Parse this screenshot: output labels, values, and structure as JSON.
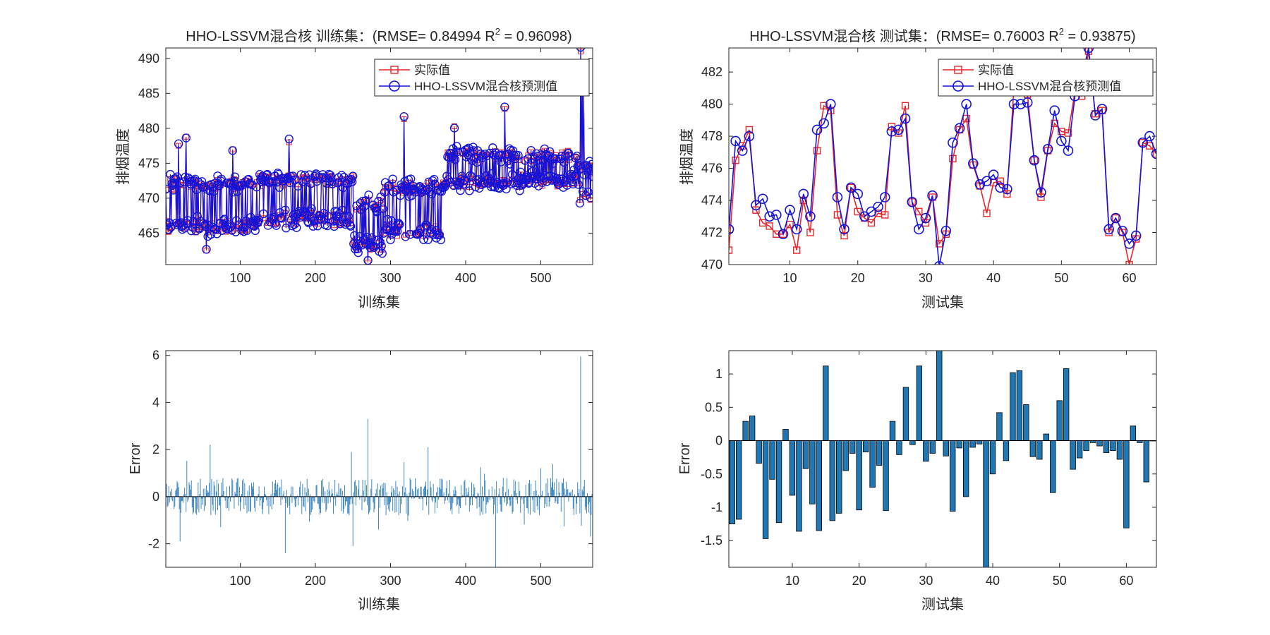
{
  "colors": {
    "actual": "#e8262a",
    "predicted": "#1414d9",
    "bar_fill": "#1f77b4",
    "error_line": "#2b7bb9",
    "axis": "#262626",
    "zero_line": "#000000"
  },
  "chart_data": [
    {
      "id": "train_pred",
      "type": "line",
      "title": "HHO-LSSVM混合核 训练集：(RMSE= 0.84994 R",
      "title_sup": "2",
      "title_tail": " = 0.96098)",
      "xlabel": "训练集",
      "ylabel": "排烟温度",
      "xlim": [
        1,
        569
      ],
      "ylim": [
        460.5,
        491.5
      ],
      "xticks": [
        100,
        200,
        300,
        400,
        500
      ],
      "yticks": [
        465,
        470,
        475,
        480,
        485,
        490
      ],
      "legend": {
        "position": "top-right",
        "entries": [
          "实际值",
          "HHO-LSSVM混合核预测值"
        ]
      },
      "n_points": 569,
      "profile": {
        "segments": [
          {
            "x": [
              1,
              120
            ],
            "low": 466.0,
            "high": 472.0
          },
          {
            "x": [
              120,
              250
            ],
            "low": 467.0,
            "high": 472.5
          },
          {
            "x": [
              250,
              290
            ],
            "low": 463.5,
            "high": 469.0
          },
          {
            "x": [
              290,
              370
            ],
            "low": 465.5,
            "high": 471.5
          },
          {
            "x": [
              370,
              550
            ],
            "low": 472.5,
            "high": 476.0
          },
          {
            "x": [
              550,
              569
            ],
            "low": 470.0,
            "high": 474.0
          }
        ],
        "spikes": [
          {
            "x": 28,
            "value": 478.8
          },
          {
            "x": 18,
            "value": 477.5
          },
          {
            "x": 90,
            "value": 477.0
          },
          {
            "x": 165,
            "value": 478.0
          },
          {
            "x": 318,
            "value": 481.3
          },
          {
            "x": 385,
            "value": 480.3
          },
          {
            "x": 452,
            "value": 482.8
          },
          {
            "x": 553,
            "value": 491.0
          },
          {
            "x": 555,
            "value": 487.5
          },
          {
            "x": 557,
            "value": 485.0
          },
          {
            "x": 270,
            "value": 460.8
          },
          {
            "x": 55,
            "value": 462.5
          }
        ]
      },
      "series": [
        {
          "name": "实际值",
          "marker": "square"
        },
        {
          "name": "HHO-LSSVM混合核预测值",
          "marker": "circle"
        }
      ]
    },
    {
      "id": "test_pred",
      "type": "line",
      "title": "HHO-LSSVM混合核 测试集：(RMSE= 0.76003 R",
      "title_sup": "2",
      "title_tail": " = 0.93875)",
      "xlabel": "测试集",
      "ylabel": "排烟温度",
      "xlim": [
        1,
        64
      ],
      "ylim": [
        470,
        483.5
      ],
      "xticks": [
        10,
        20,
        30,
        40,
        50,
        60
      ],
      "yticks": [
        470,
        472,
        474,
        476,
        478,
        480,
        482
      ],
      "legend": {
        "position": "top-right",
        "entries": [
          "实际值",
          "HHO-LSSVM混合核预测值"
        ]
      },
      "x": [
        1,
        2,
        3,
        4,
        5,
        6,
        7,
        8,
        9,
        10,
        11,
        12,
        13,
        14,
        15,
        16,
        17,
        18,
        19,
        20,
        21,
        22,
        23,
        24,
        25,
        26,
        27,
        28,
        29,
        30,
        31,
        32,
        33,
        34,
        35,
        36,
        37,
        38,
        39,
        40,
        41,
        42,
        43,
        44,
        45,
        46,
        47,
        48,
        49,
        50,
        51,
        52,
        53,
        54,
        55,
        56,
        57,
        58,
        59,
        60,
        61,
        62,
        63,
        64
      ],
      "series": [
        {
          "name": "实际值",
          "marker": "square",
          "values": [
            470.9,
            476.5,
            477.4,
            478.4,
            473.4,
            472.6,
            472.4,
            471.9,
            471.9,
            472.5,
            470.9,
            474.0,
            472.0,
            477.1,
            479.9,
            479.6,
            473.1,
            471.8,
            474.8,
            473.3,
            472.9,
            472.6,
            473.2,
            473.1,
            478.6,
            478.2,
            479.9,
            473.9,
            473.3,
            472.6,
            474.2,
            471.3,
            471.9,
            476.6,
            478.4,
            479.1,
            476.2,
            474.9,
            473.2,
            475.1,
            475.2,
            474.4,
            481.0,
            480.9,
            480.6,
            476.5,
            474.2,
            477.1,
            478.8,
            478.3,
            478.2,
            480.8,
            480.5,
            483.3,
            479.4,
            479.6,
            472.0,
            472.9,
            472.0,
            470.0,
            471.6,
            477.6,
            477.4,
            476.9
          ]
        },
        {
          "name": "HHO-LSSVM混合核预测值",
          "marker": "circle",
          "values": [
            472.2,
            477.7,
            477.1,
            478.0,
            473.7,
            474.1,
            473.0,
            473.1,
            471.9,
            473.4,
            472.2,
            474.4,
            473.0,
            478.4,
            478.8,
            480.0,
            474.2,
            472.2,
            474.8,
            474.4,
            473.0,
            473.3,
            473.6,
            474.2,
            478.3,
            478.4,
            479.1,
            473.9,
            472.2,
            472.9,
            474.3,
            469.9,
            472.1,
            477.6,
            478.5,
            480.0,
            476.3,
            475.0,
            475.2,
            475.6,
            474.8,
            474.7,
            480.0,
            480.0,
            480.1,
            476.5,
            474.5,
            477.2,
            479.6,
            477.7,
            477.1,
            480.5,
            481.6,
            483.5,
            479.3,
            479.7,
            472.2,
            472.9,
            472.1,
            471.3,
            471.8,
            477.6,
            478.0,
            476.9
          ]
        }
      ]
    },
    {
      "id": "train_err",
      "type": "bar",
      "title": "",
      "xlabel": "训练集",
      "ylabel": "Error",
      "xlim": [
        1,
        569
      ],
      "ylim": [
        -3,
        6.2
      ],
      "xticks": [
        100,
        200,
        300,
        400,
        500
      ],
      "yticks": [
        -2,
        0,
        2,
        4,
        6
      ],
      "n_points": 569,
      "profile": {
        "typical_range": [
          -1.2,
          1.2
        ],
        "peaks": [
          {
            "x": 553,
            "value": 5.95
          },
          {
            "x": 270,
            "value": 3.3
          },
          {
            "x": 60,
            "value": 2.2
          },
          {
            "x": 350,
            "value": 2.1
          },
          {
            "x": 248,
            "value": 1.9
          },
          {
            "x": 20,
            "value": -1.9
          },
          {
            "x": 160,
            "value": -2.4
          },
          {
            "x": 440,
            "value": -3.0
          },
          {
            "x": 250,
            "value": -2.1
          },
          {
            "x": 566,
            "value": -1.7
          }
        ]
      }
    },
    {
      "id": "test_err",
      "type": "bar",
      "title": "",
      "xlabel": "测试集",
      "ylabel": "Error",
      "xlim": [
        0.5,
        64.5
      ],
      "ylim": [
        -1.9,
        1.35
      ],
      "xticks": [
        10,
        20,
        30,
        40,
        50,
        60
      ],
      "yticks": [
        -1.5,
        -1,
        -0.5,
        0,
        0.5,
        1
      ],
      "x": [
        1,
        2,
        3,
        4,
        5,
        6,
        7,
        8,
        9,
        10,
        11,
        12,
        13,
        14,
        15,
        16,
        17,
        18,
        19,
        20,
        21,
        22,
        23,
        24,
        25,
        26,
        27,
        28,
        29,
        30,
        31,
        32,
        33,
        34,
        35,
        36,
        37,
        38,
        39,
        40,
        41,
        42,
        43,
        44,
        45,
        46,
        47,
        48,
        49,
        50,
        51,
        52,
        53,
        54,
        55,
        56,
        57,
        58,
        59,
        60,
        61,
        62,
        63,
        64
      ],
      "values": [
        -1.25,
        -1.18,
        0.29,
        0.37,
        -0.34,
        -1.47,
        -0.58,
        -1.23,
        0.17,
        -0.82,
        -1.36,
        -0.42,
        -0.95,
        -1.35,
        1.12,
        -1.2,
        -1.09,
        -0.45,
        -0.19,
        -1.04,
        -0.17,
        -0.7,
        -0.37,
        -1.05,
        0.29,
        -0.21,
        0.8,
        -0.06,
        1.12,
        -0.31,
        -0.19,
        1.35,
        -0.23,
        -1.06,
        -0.11,
        -0.84,
        -0.1,
        -0.05,
        -1.95,
        -0.5,
        0.42,
        -0.3,
        1.02,
        1.05,
        0.54,
        -0.24,
        -0.28,
        0.1,
        -0.78,
        0.6,
        1.08,
        -0.43,
        -0.26,
        -0.15,
        -0.03,
        -0.08,
        -0.18,
        -0.15,
        -0.28,
        -1.31,
        0.22,
        -0.03,
        -0.62,
        0.0
      ]
    }
  ]
}
